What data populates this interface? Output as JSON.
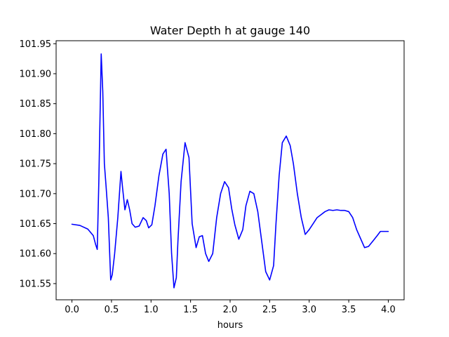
{
  "chart_data": {
    "type": "line",
    "title": "Water Depth h at gauge 140",
    "xlabel": "hours",
    "ylabel": "",
    "xlim": [
      -0.2,
      4.2
    ],
    "ylim": [
      101.523,
      101.955
    ],
    "xticks": [
      0.0,
      0.5,
      1.0,
      1.5,
      2.0,
      2.5,
      3.0,
      3.5,
      4.0
    ],
    "xtick_labels": [
      "0.0",
      "0.5",
      "1.0",
      "1.5",
      "2.0",
      "2.5",
      "3.0",
      "3.5",
      "4.0"
    ],
    "yticks": [
      101.55,
      101.6,
      101.65,
      101.7,
      101.75,
      101.8,
      101.85,
      101.9,
      101.95
    ],
    "ytick_labels": [
      "101.55",
      "101.60",
      "101.65",
      "101.70",
      "101.75",
      "101.80",
      "101.85",
      "101.90",
      "101.95"
    ],
    "grid": false,
    "legend": "none",
    "series": [
      {
        "color": "#0000ff",
        "x": [
          0.0,
          0.1,
          0.2,
          0.27,
          0.3,
          0.32,
          0.34,
          0.37,
          0.39,
          0.41,
          0.43,
          0.46,
          0.49,
          0.51,
          0.54,
          0.58,
          0.62,
          0.64,
          0.67,
          0.7,
          0.73,
          0.76,
          0.8,
          0.85,
          0.9,
          0.94,
          0.97,
          1.01,
          1.05,
          1.1,
          1.15,
          1.19,
          1.23,
          1.26,
          1.29,
          1.32,
          1.34,
          1.38,
          1.43,
          1.48,
          1.52,
          1.57,
          1.61,
          1.65,
          1.69,
          1.73,
          1.78,
          1.83,
          1.88,
          1.93,
          1.98,
          2.02,
          2.06,
          2.11,
          2.16,
          2.2,
          2.25,
          2.3,
          2.35,
          2.4,
          2.45,
          2.5,
          2.55,
          2.58,
          2.62,
          2.66,
          2.71,
          2.76,
          2.8,
          2.85,
          2.9,
          2.95,
          3.0,
          3.05,
          3.1,
          3.15,
          3.2,
          3.25,
          3.3,
          3.35,
          3.4,
          3.45,
          3.5,
          3.55,
          3.6,
          3.65,
          3.7,
          3.75,
          3.8,
          3.86,
          3.9,
          3.95,
          4.0
        ],
        "y": [
          101.649,
          101.647,
          101.641,
          101.63,
          101.615,
          101.607,
          101.72,
          101.933,
          101.87,
          101.75,
          101.715,
          101.66,
          101.556,
          101.565,
          101.6,
          101.66,
          101.737,
          101.71,
          101.673,
          101.69,
          101.673,
          101.65,
          101.644,
          101.646,
          101.66,
          101.655,
          101.643,
          101.648,
          101.68,
          101.73,
          101.766,
          101.774,
          101.7,
          101.6,
          101.543,
          101.56,
          101.62,
          101.72,
          101.785,
          101.76,
          101.65,
          101.61,
          101.628,
          101.63,
          101.6,
          101.587,
          101.6,
          101.66,
          101.7,
          101.72,
          101.71,
          101.675,
          101.648,
          101.624,
          101.64,
          101.68,
          101.704,
          101.7,
          101.67,
          101.62,
          101.57,
          101.556,
          101.58,
          101.65,
          101.73,
          101.785,
          101.796,
          101.78,
          101.75,
          101.7,
          101.66,
          101.632,
          101.64,
          101.65,
          101.66,
          101.665,
          101.67,
          101.673,
          101.672,
          101.673,
          101.672,
          101.672,
          101.67,
          101.66,
          101.64,
          101.625,
          101.61,
          101.612,
          101.62,
          101.63,
          101.637,
          101.637,
          101.637
        ]
      }
    ]
  }
}
